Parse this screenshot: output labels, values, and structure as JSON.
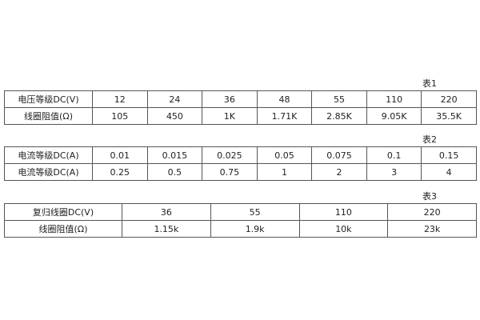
{
  "table1": {
    "caption": "表1",
    "rows": [
      [
        "电压等级DC(V)",
        "12",
        "24",
        "36",
        "48",
        "55",
        "110",
        "220"
      ],
      [
        "线圈阻值(Ω)",
        "105",
        "450",
        "1K",
        "1.71K",
        "2.85K",
        "9.05K",
        "35.5K"
      ]
    ]
  },
  "table2": {
    "caption": "表2",
    "rows": [
      [
        "电流等级DC(A)",
        "0.01",
        "0.015",
        "0.025",
        "0.05",
        "0.075",
        "0.1",
        "0.15"
      ],
      [
        "电流等级DC(A)",
        "0.25",
        "0.5",
        "0.75",
        "1",
        "2",
        "3",
        "4"
      ]
    ]
  },
  "table3": {
    "caption": "表3",
    "rows": [
      [
        "复归线圈DC(V)",
        "36",
        "55",
        "110",
        "220"
      ],
      [
        "线圈阻值(Ω)",
        "1.15k",
        "1.9k",
        "10k",
        "23k"
      ]
    ]
  }
}
